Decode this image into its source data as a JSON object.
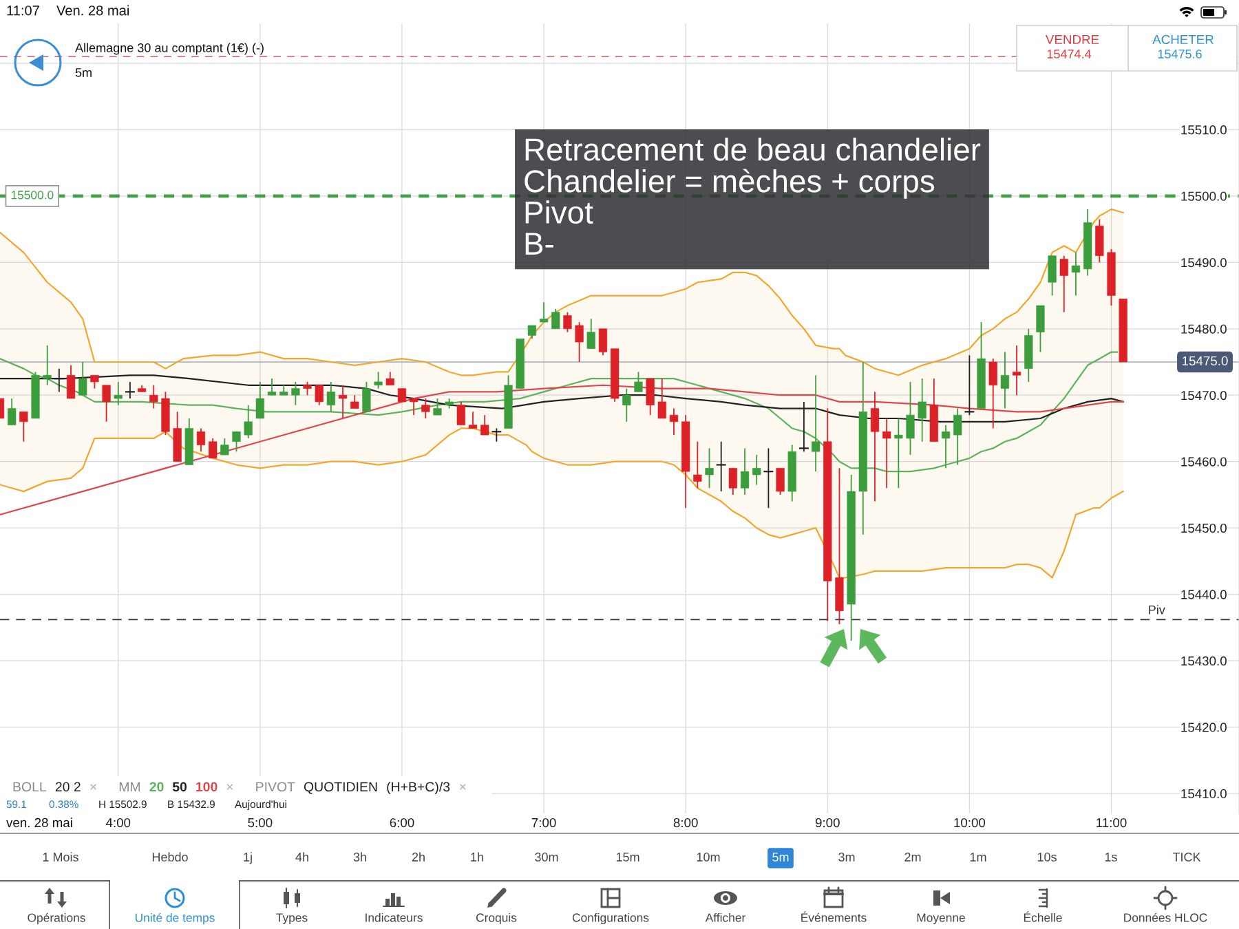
{
  "chart_data": {
    "type": "candlestick",
    "title": "Allemagne 30 au comptant (1€) (-)",
    "subtitle": "5m",
    "xlabel": "ven. 28 mai",
    "x": [
      3.1667,
      3.25,
      3.3333,
      3.4167,
      3.5,
      3.5833,
      3.6667,
      3.75,
      3.8333,
      3.9167,
      4,
      4.0833,
      4.1667,
      4.25,
      4.3333,
      4.4167,
      4.5,
      4.5833,
      4.6667,
      4.75,
      4.8333,
      4.9167,
      5,
      5.0833,
      5.1667,
      5.25,
      5.3333,
      5.4167,
      5.5,
      5.5833,
      5.6667,
      5.75,
      5.8333,
      5.9167,
      6,
      6.0833,
      6.1667,
      6.25,
      6.3333,
      6.4167,
      6.5,
      6.5833,
      6.6667,
      6.75,
      6.8333,
      6.9167,
      7,
      7.0833,
      7.1667,
      7.25,
      7.3333,
      7.4167,
      7.5,
      7.5833,
      7.6667,
      7.75,
      7.8333,
      7.9167,
      8,
      8.0833,
      8.1667,
      8.25,
      8.3333,
      8.4167,
      8.5,
      8.5833,
      8.6667,
      8.75,
      8.8333,
      8.9167,
      9,
      9.0833,
      9.1667,
      9.25,
      9.3333,
      9.4167,
      9.5,
      9.5833,
      9.6667,
      9.75,
      9.8333,
      9.9167,
      10,
      10.0833,
      10.1667,
      10.25,
      10.3333,
      10.4167,
      10.5,
      10.5833,
      10.6667,
      10.75,
      10.8333,
      10.9167,
      11,
      11.0833
    ],
    "ohlc": [
      [
        15469.5,
        15469.5,
        15466.5,
        15466.5
      ],
      [
        15465.5,
        15469.5,
        15465.5,
        15468.0
      ],
      [
        15467.5,
        15467.5,
        15463.0,
        15466.0
      ],
      [
        15466.5,
        15473.5,
        15466.5,
        15473.0
      ],
      [
        15472.5,
        15477.5,
        15471.5,
        15473.0
      ],
      [
        15472.5,
        15474.0,
        15470.5,
        15472.5
      ],
      [
        15473.0,
        15474.5,
        15469.5,
        15469.5
      ],
      [
        15470.0,
        15475.0,
        15470.0,
        15472.5
      ],
      [
        15473.0,
        15473.0,
        15471.0,
        15472.0
      ],
      [
        15471.5,
        15471.5,
        15466.0,
        15469.0
      ],
      [
        15469.5,
        15472.0,
        15468.5,
        15470.0
      ],
      [
        15470.5,
        15472.0,
        15469.5,
        15470.5
      ],
      [
        15471.0,
        15471.5,
        15470.5,
        15470.5
      ],
      [
        15470.0,
        15471.5,
        15468.0,
        15469.0
      ],
      [
        15469.5,
        15470.5,
        15464.0,
        15464.5
      ],
      [
        15465.0,
        15467.5,
        15460.0,
        15460.0
      ],
      [
        15459.5,
        15466.5,
        15459.5,
        15465.0
      ],
      [
        15464.5,
        15465.0,
        15461.5,
        15462.5
      ],
      [
        15463.0,
        15463.5,
        15460.5,
        15460.5
      ],
      [
        15461.0,
        15463.5,
        15461.0,
        15462.5
      ],
      [
        15463.0,
        15464.5,
        15461.5,
        15464.5
      ],
      [
        15464.0,
        15468.5,
        15463.5,
        15466.0
      ],
      [
        15466.5,
        15472.0,
        15466.5,
        15469.5
      ],
      [
        15470.0,
        15472.5,
        15470.0,
        15470.5
      ],
      [
        15470.0,
        15471.5,
        15470.0,
        15470.5
      ],
      [
        15470.0,
        15472.0,
        15468.5,
        15471.0
      ],
      [
        15471.5,
        15472.0,
        15470.0,
        15471.0
      ],
      [
        15471.5,
        15471.5,
        15468.5,
        15469.0
      ],
      [
        15468.5,
        15472.0,
        15467.5,
        15470.5
      ],
      [
        15470.0,
        15471.5,
        15466.5,
        15469.5
      ],
      [
        15469.0,
        15470.0,
        15468.0,
        15468.0
      ],
      [
        15467.5,
        15472.0,
        15467.5,
        15471.0
      ],
      [
        15471.5,
        15473.5,
        15471.0,
        15472.0
      ],
      [
        15472.5,
        15473.5,
        15471.5,
        15471.5
      ],
      [
        15471.0,
        15471.0,
        15469.0,
        15469.0
      ],
      [
        15469.5,
        15469.5,
        15467.0,
        15469.0
      ],
      [
        15468.5,
        15469.5,
        15466.5,
        15467.5
      ],
      [
        15467.0,
        15469.5,
        15467.0,
        15468.0
      ],
      [
        15468.5,
        15469.5,
        15468.0,
        15469.0
      ],
      [
        15468.5,
        15469.0,
        15465.5,
        15465.5
      ],
      [
        15465.5,
        15467.5,
        15465.0,
        15465.0
      ],
      [
        15465.5,
        15467.0,
        15464.0,
        15464.0
      ],
      [
        15464.5,
        15465.0,
        15463.0,
        15464.5
      ],
      [
        15465.0,
        15473.0,
        15465.0,
        15471.5
      ],
      [
        15471.0,
        15478.5,
        15471.0,
        15478.5
      ],
      [
        15479.0,
        15480.5,
        15478.5,
        15480.5
      ],
      [
        15481.0,
        15484.0,
        15481.0,
        15481.5
      ],
      [
        15480.0,
        15483.0,
        15480.0,
        15482.5
      ],
      [
        15482.0,
        15482.5,
        15479.5,
        15480.0
      ],
      [
        15480.5,
        15481.0,
        15475.0,
        15478.0
      ],
      [
        15477.0,
        15481.5,
        15477.0,
        15479.5
      ],
      [
        15480.0,
        15480.0,
        15476.0,
        15476.5
      ],
      [
        15477.0,
        15477.0,
        15469.0,
        15469.5
      ],
      [
        15468.5,
        15471.0,
        15466.0,
        15470.0
      ],
      [
        15470.5,
        15473.5,
        15470.5,
        15472.0
      ],
      [
        15472.5,
        15472.5,
        15467.0,
        15468.5
      ],
      [
        15469.0,
        15472.5,
        15466.5,
        15466.5
      ],
      [
        15467.0,
        15468.0,
        15464.0,
        15466.0
      ],
      [
        15466.0,
        15467.0,
        15453.0,
        15458.5
      ],
      [
        15458.0,
        15463.0,
        15456.0,
        15457.0
      ],
      [
        15458.0,
        15462.0,
        15456.0,
        15459.0
      ],
      [
        15459.5,
        15463.0,
        15455.5,
        15459.5
      ],
      [
        15459.0,
        15459.0,
        15455.0,
        15456.0
      ],
      [
        15456.0,
        15462.0,
        15455.0,
        15458.5
      ],
      [
        15458.0,
        15461.0,
        15456.5,
        15459.0
      ],
      [
        15458.5,
        15462.0,
        15453.0,
        15458.5
      ],
      [
        15459.0,
        15459.0,
        15455.0,
        15455.5
      ],
      [
        15455.5,
        15462.5,
        15454.0,
        15461.5
      ],
      [
        15462.0,
        15469.0,
        15461.5,
        15462.0
      ],
      [
        15461.5,
        15473.0,
        15458.5,
        15463.0
      ],
      [
        15463.0,
        15468.0,
        15436.0,
        15442.0
      ],
      [
        15442.5,
        15459.0,
        15435.5,
        15437.5
      ],
      [
        15438.5,
        15458.0,
        15433.0,
        15455.5
      ],
      [
        15455.5,
        15475.0,
        15449.0,
        15467.5
      ],
      [
        15468.0,
        15470.5,
        15454.0,
        15464.5
      ],
      [
        15464.5,
        15466.5,
        15456.0,
        15463.5
      ],
      [
        15463.5,
        15466.5,
        15456.0,
        15464.0
      ],
      [
        15463.5,
        15472.0,
        15461.0,
        15467.0
      ],
      [
        15466.5,
        15472.5,
        15463.0,
        15469.0
      ],
      [
        15468.5,
        15472.5,
        15463.0,
        15463.0
      ],
      [
        15463.5,
        15465.5,
        15459.0,
        15464.5
      ],
      [
        15464.0,
        15468.0,
        15459.5,
        15467.0
      ],
      [
        15467.5,
        15476.0,
        15467.0,
        15467.5
      ],
      [
        15468.0,
        15481.0,
        15468.0,
        15475.5
      ],
      [
        15475.0,
        15475.5,
        15465.0,
        15471.5
      ],
      [
        15471.0,
        15476.5,
        15468.0,
        15473.0
      ],
      [
        15473.5,
        15477.5,
        15470.0,
        15473.0
      ],
      [
        15474.0,
        15480.0,
        15472.0,
        15479.0
      ],
      [
        15479.5,
        15483.5,
        15476.5,
        15483.5
      ],
      [
        15487.0,
        15491.0,
        15485.0,
        15491.0
      ],
      [
        15490.5,
        15491.0,
        15482.5,
        15488.0
      ],
      [
        15488.5,
        15491.5,
        15485.0,
        15489.5
      ],
      [
        15489.0,
        15498.0,
        15488.0,
        15496.0
      ],
      [
        15495.5,
        15496.5,
        15490.0,
        15491.0
      ],
      [
        15491.5,
        15492.0,
        15483.5,
        15485.0
      ],
      [
        15484.5,
        15484.5,
        15475.0,
        15475.0
      ]
    ],
    "colors": [
      "#dc2127",
      "#3c9d3c",
      "#dc2127",
      "#3c9d3c",
      "#3c9d3c",
      "#222222",
      "#dc2127",
      "#3c9d3c",
      "#dc2127",
      "#dc2127",
      "#3c9d3c",
      "#222222",
      "#dc2127",
      "#dc2127",
      "#dc2127",
      "#dc2127",
      "#3c9d3c",
      "#dc2127",
      "#dc2127",
      "#3c9d3c",
      "#3c9d3c",
      "#3c9d3c",
      "#3c9d3c",
      "#3c9d3c",
      "#3c9d3c",
      "#3c9d3c",
      "#dc2127",
      "#dc2127",
      "#3c9d3c",
      "#dc2127",
      "#dc2127",
      "#3c9d3c",
      "#3c9d3c",
      "#dc2127",
      "#dc2127",
      "#dc2127",
      "#dc2127",
      "#3c9d3c",
      "#3c9d3c",
      "#dc2127",
      "#dc2127",
      "#dc2127",
      "#222222",
      "#3c9d3c",
      "#3c9d3c",
      "#3c9d3c",
      "#3c9d3c",
      "#3c9d3c",
      "#dc2127",
      "#dc2127",
      "#3c9d3c",
      "#dc2127",
      "#dc2127",
      "#3c9d3c",
      "#3c9d3c",
      "#dc2127",
      "#dc2127",
      "#dc2127",
      "#dc2127",
      "#dc2127",
      "#3c9d3c",
      "#222222",
      "#dc2127",
      "#3c9d3c",
      "#3c9d3c",
      "#222222",
      "#dc2127",
      "#3c9d3c",
      "#222222",
      "#3c9d3c",
      "#dc2127",
      "#dc2127",
      "#3c9d3c",
      "#3c9d3c",
      "#dc2127",
      "#dc2127",
      "#3c9d3c",
      "#3c9d3c",
      "#3c9d3c",
      "#dc2127",
      "#3c9d3c",
      "#3c9d3c",
      "#222222",
      "#3c9d3c",
      "#dc2127",
      "#3c9d3c",
      "#dc2127",
      "#3c9d3c",
      "#3c9d3c",
      "#3c9d3c",
      "#dc2127",
      "#3c9d3c",
      "#3c9d3c",
      "#dc2127",
      "#dc2127",
      "#dc2127"
    ],
    "series": [
      {
        "type": "line",
        "color": "#f0a830",
        "x": [
          3.1667,
          3.3333,
          3.5,
          3.6667,
          3.75,
          3.8333,
          4.25,
          4.3333,
          4.4583,
          4.6667,
          4.8333,
          5,
          5.1667,
          5.3333,
          5.5,
          5.6667,
          5.8333,
          6,
          6.1667,
          6.3333,
          6.4167,
          6.5,
          6.6667,
          6.75,
          6.875,
          6.9167,
          7,
          7.0833,
          7.1667,
          7.3333,
          7.5,
          7.6667,
          7.8333,
          7.9167,
          8,
          8.0833,
          8.25,
          8.3333,
          8.4167,
          8.5,
          8.5833,
          8.6667,
          8.75,
          8.8333,
          8.9167,
          9.0417,
          9.0833,
          9.125,
          9.25,
          9.3333,
          9.4167,
          9.5,
          9.6667,
          9.8333,
          10,
          10.0833,
          10.1667,
          10.25,
          10.3333,
          10.4167,
          10.5,
          10.5833,
          10.6667,
          10.75,
          10.875,
          10.9167,
          11,
          11.0833
        ],
        "values": [
          15494.5,
          15491.5,
          15487.0,
          15484.0,
          15481.5,
          15475.0,
          15475.0,
          15474.0,
          15475.5,
          15476.0,
          15476.0,
          15476.5,
          15475.5,
          15475.5,
          15475.0,
          15474.5,
          15475.0,
          15475.5,
          15475.0,
          15473.5,
          15473.0,
          15473.0,
          15473.5,
          15473.5,
          15477.5,
          15479.0,
          15481.0,
          15482.5,
          15483.5,
          15485.0,
          15485.0,
          15485.0,
          15485.0,
          15485.5,
          15486.0,
          15487.0,
          15487.5,
          15488.5,
          15488.5,
          15488.0,
          15486.5,
          15484.5,
          15482.0,
          15480.0,
          15477.5,
          15477.0,
          15477.0,
          15476.0,
          15475.0,
          15474.0,
          15473.5,
          15473.0,
          15474.5,
          15475.5,
          15477.0,
          15479.0,
          15480.0,
          15481.5,
          15482.5,
          15484.5,
          15487.0,
          15491.5,
          15492.5,
          15491.5,
          15496.0,
          15497.0,
          15498.0,
          15497.5
        ],
        "upper": [
          15494.5,
          15491.5,
          15487.0,
          15484.0,
          15481.5,
          15475.0,
          15475.0,
          15474.0,
          15475.5,
          15476.0,
          15476.0,
          15476.5,
          15475.5,
          15475.5,
          15475.0,
          15474.5,
          15475.0,
          15475.5,
          15475.0,
          15473.5,
          15473.0,
          15473.0,
          15473.5,
          15473.5,
          15477.5,
          15479.0,
          15481.0,
          15482.5,
          15483.5,
          15485.0,
          15485.0,
          15485.0,
          15485.0,
          15485.5,
          15486.0,
          15487.0,
          15487.5,
          15488.5,
          15488.5,
          15488.0,
          15486.5,
          15484.5,
          15482.0,
          15480.0,
          15477.5,
          15477.0,
          15477.0,
          15476.0,
          15475.0,
          15474.0,
          15473.5,
          15473.0,
          15474.5,
          15475.5,
          15477.0,
          15479.0,
          15480.0,
          15481.5,
          15482.5,
          15484.5,
          15487.0,
          15491.5,
          15492.5,
          15491.5,
          15496.0,
          15497.0,
          15498.0,
          15497.5
        ],
        "lower": [
          15456.5,
          15455.5,
          15457.0,
          15457.5,
          15459.0,
          15463.5,
          15463.5,
          15464.5,
          15462.0,
          15460.5,
          15459.5,
          15459.0,
          15459.5,
          15459.5,
          15460.0,
          15460.0,
          15459.5,
          15460.0,
          15461.0,
          15464.0,
          15465.0,
          15465.0,
          15464.0,
          15464.0,
          15462.5,
          15461.5,
          15460.5,
          15460.0,
          15459.5,
          15459.5,
          15460.0,
          15460.0,
          15460.0,
          15459.5,
          15458.0,
          15456.0,
          15454.0,
          15452.5,
          15451.5,
          15450.0,
          15449.0,
          15448.5,
          15449.0,
          15449.5,
          15450.0,
          15444.5,
          15442.5,
          15442.5,
          15443.0,
          15443.5,
          15443.5,
          15443.5,
          15443.5,
          15444.0,
          15444.0,
          15444.0,
          15444.0,
          15444.0,
          15444.5,
          15444.5,
          15444.0,
          15442.5,
          15446.5,
          15452.0,
          15453.0,
          15453.0,
          15454.5,
          15455.5
        ]
      },
      {
        "type": "line",
        "color": "#f0a830",
        "x": [
          3.1667,
          3.3333,
          3.5,
          3.6667,
          3.75,
          3.8333,
          4.25,
          4.3333,
          4.4583,
          4.6667,
          4.8333,
          5,
          5.1667,
          5.3333,
          5.5,
          5.6667,
          5.8333,
          6,
          6.1667,
          6.3333,
          6.4167,
          6.5,
          6.6667,
          6.75,
          6.875,
          6.9167,
          7,
          7.0833,
          7.1667,
          7.3333,
          7.5,
          7.6667,
          7.8333,
          7.9167,
          8,
          8.0833,
          8.25,
          8.3333,
          8.4167,
          8.5,
          8.5833,
          8.6667,
          8.75,
          8.8333,
          8.9167,
          9.0417,
          9.0833,
          9.125,
          9.25,
          9.3333,
          9.4167,
          9.5,
          9.6667,
          9.8333,
          10,
          10.0833,
          10.1667,
          10.25,
          10.3333,
          10.4167,
          10.5,
          10.5833,
          10.6667,
          10.75,
          10.875,
          10.9167,
          11,
          11.0833
        ],
        "values": [
          15456.5,
          15455.5,
          15457.0,
          15457.5,
          15459.0,
          15463.5,
          15463.5,
          15464.5,
          15462.0,
          15460.5,
          15459.5,
          15459.0,
          15459.5,
          15459.5,
          15460.0,
          15460.0,
          15459.5,
          15460.0,
          15461.0,
          15464.0,
          15465.0,
          15465.0,
          15464.0,
          15464.0,
          15462.5,
          15461.5,
          15460.5,
          15460.0,
          15459.5,
          15459.5,
          15460.0,
          15460.0,
          15460.0,
          15459.5,
          15458.0,
          15456.0,
          15454.0,
          15452.5,
          15451.5,
          15450.0,
          15449.0,
          15448.5,
          15449.0,
          15449.5,
          15450.0,
          15444.5,
          15442.5,
          15442.5,
          15443.0,
          15443.5,
          15443.5,
          15443.5,
          15443.5,
          15444.0,
          15444.0,
          15444.0,
          15444.0,
          15444.0,
          15444.5,
          15444.5,
          15444.0,
          15442.5,
          15446.5,
          15452.0,
          15453.0,
          15453.0,
          15454.5,
          15455.5
        ]
      },
      {
        "name": "20",
        "type": "line",
        "color": "#5cb35c",
        "x": [
          3.1667,
          3.3333,
          3.4167,
          3.5,
          3.5833,
          3.7083,
          3.75,
          3.8333,
          4.1667,
          4.5,
          4.6667,
          4.8333,
          5.0417,
          5.5,
          5.8333,
          6,
          6.25,
          6.4167,
          6.5833,
          6.8333,
          7,
          7.1667,
          7.3333,
          7.9167,
          8.0833,
          8.25,
          8.4167,
          8.5833,
          8.6667,
          8.75,
          8.8333,
          8.9167,
          9.0417,
          9.0833,
          9.1667,
          9.3333,
          9.4167,
          9.5833,
          9.75,
          9.8333,
          9.9167,
          10,
          10.0833,
          10.1667,
          10.25,
          10.3333,
          10.4167,
          10.5,
          10.5833,
          10.6667,
          10.75,
          10.8333,
          10.9167,
          11,
          11.0417
        ],
        "values": [
          15475.5,
          15474.0,
          15473.0,
          15472.5,
          15471.5,
          15470.5,
          15470.0,
          15469.0,
          15469.0,
          15468.5,
          15468.5,
          15468.0,
          15467.5,
          15467.5,
          15467.0,
          15467.5,
          15468.5,
          15469.0,
          15469.0,
          15469.5,
          15470.5,
          15471.5,
          15472.5,
          15472.5,
          15471.5,
          15470.5,
          15469.5,
          15468.0,
          15466.5,
          15465.0,
          15464.5,
          15463.5,
          15461.0,
          15460.0,
          15459.0,
          15459.0,
          15458.5,
          15458.5,
          15459.0,
          15459.5,
          15460.0,
          15460.5,
          15461.5,
          15462.0,
          15463.0,
          15463.5,
          15464.5,
          15465.5,
          15467.5,
          15469.5,
          15472.0,
          15474.5,
          15475.5,
          15476.5,
          15476.5
        ]
      },
      {
        "name": "50",
        "type": "line",
        "color": "#222222",
        "x": [
          3.1667,
          3.625,
          4.0833,
          4.25,
          4.5,
          4.9167,
          5.5,
          5.75,
          5.9167,
          6.0833,
          6.3333,
          6.7083,
          7,
          7.25,
          7.5417,
          7.7917,
          8,
          8.25,
          8.4167,
          8.6667,
          8.9167,
          9,
          9.0833,
          9.2917,
          9.5,
          9.7917,
          10.25,
          10.5,
          10.6667,
          10.8333,
          11,
          11.0833
        ],
        "values": [
          15472.5,
          15472.5,
          15473.0,
          15473.0,
          15472.5,
          15471.5,
          15471.5,
          15471.0,
          15470.0,
          15469.5,
          15468.5,
          15468.0,
          15469.0,
          15469.5,
          15470.0,
          15470.0,
          15469.5,
          15469.0,
          15468.5,
          15468.0,
          15468.0,
          15467.5,
          15467.0,
          15466.5,
          15466.5,
          15466.0,
          15466.0,
          15466.5,
          15468.0,
          15469.0,
          15469.5,
          15469.0
        ]
      },
      {
        "name": "100",
        "type": "line",
        "color": "#e0474c",
        "x": [
          3.1667,
          4,
          5,
          6,
          6.0833,
          6.3333,
          6.6667,
          7,
          7.4167,
          7.8333,
          8.1667,
          8.4167,
          8.6667,
          8.9167,
          9.0833,
          9.3333,
          9.75,
          10,
          10.3333,
          10.5,
          10.6667,
          10.8333,
          11,
          11.0833
        ],
        "values": [
          15452.0,
          15457.0,
          15463.0,
          15469.0,
          15469.5,
          15470.5,
          15470.5,
          15471.0,
          15471.5,
          15471.0,
          15471.0,
          15470.5,
          15470.0,
          15470.0,
          15469.0,
          15469.0,
          15468.5,
          15468.0,
          15467.5,
          15467.5,
          15468.0,
          15468.5,
          15469.0,
          15469.0
        ]
      }
    ],
    "xlim": [
      3.1667,
      11.9
    ],
    "xticks": [
      {
        "value": 4,
        "label": "4:00"
      },
      {
        "value": 5,
        "label": "5:00"
      },
      {
        "value": 6,
        "label": "6:00"
      },
      {
        "value": 7,
        "label": "7:00"
      },
      {
        "value": 8,
        "label": "8:00"
      },
      {
        "value": 9,
        "label": "9:00"
      },
      {
        "value": 10,
        "label": "10:00"
      },
      {
        "value": 11,
        "label": "11:00"
      }
    ],
    "ylim": [
      15407,
      15526
    ],
    "yticks": [
      {
        "value": 15410,
        "label": "15410.0"
      },
      {
        "value": 15420,
        "label": "15420.0"
      },
      {
        "value": 15430,
        "label": "15430.0"
      },
      {
        "value": 15440,
        "label": "15440.0"
      },
      {
        "value": 15450,
        "label": "15450.0"
      },
      {
        "value": 15460,
        "label": "15460.0"
      },
      {
        "value": 15470,
        "label": "15470.0"
      },
      {
        "value": 15480,
        "label": "15480.0"
      },
      {
        "value": 15490,
        "label": "15490.0"
      },
      {
        "value": 15500,
        "label": "15500.0"
      },
      {
        "value": 15510,
        "label": "15510.0"
      },
      {
        "value": 15520,
        "label": null
      }
    ],
    "grid": true,
    "legend": "bottom left",
    "ref_lines": [
      {
        "axis": "y",
        "value": 15521,
        "color": "#e06060",
        "line_style": "dashed"
      },
      {
        "axis": "y",
        "value": 15500,
        "label": "15500.0",
        "color": "#43a047",
        "line_style": "dashed"
      },
      {
        "axis": "y",
        "value": 15475.0,
        "label": "15475.0",
        "color": "#a3aab8",
        "line_style": "solid"
      },
      {
        "axis": "y",
        "value": 15436.2,
        "label": "Piv",
        "color": "#333333",
        "line_style": "dashed"
      }
    ],
    "annotations": [
      "11:07",
      "Ven. 28 mai",
      "VENDRE",
      "15474.4",
      "ACHETER",
      "15475.6",
      "Retracement de beau chandelier\nChandelier = mèches + corps\nPivot\nB-",
      "BOLL",
      "20 2",
      "×",
      "MM",
      "×",
      "PIVOT",
      "QUOTIDIEN",
      "(H+B+C)/3",
      "×",
      "59.1",
      "0.38%",
      "H 15502.9",
      "B 15432.9",
      "Aujourd'hui",
      "1 Mois",
      "Hebdo",
      "1j",
      "4h",
      "3h",
      "2h",
      "1h",
      "30m",
      "15m",
      "10m",
      "5m",
      "3m",
      "2m",
      "1m",
      "10s",
      "1s",
      "TICK",
      "Opérations",
      "Unité de temps",
      "Types",
      "Indicateurs",
      "Croquis",
      "Configurations",
      "Afficher",
      "Événements",
      "Moyenne",
      "Échelle",
      "Données HLOC"
    ]
  }
}
